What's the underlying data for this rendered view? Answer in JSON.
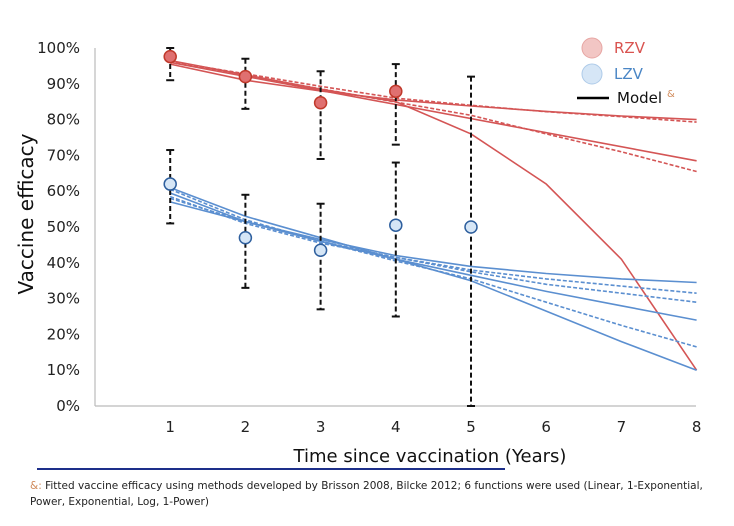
{
  "chart_data": {
    "type": "line",
    "xlabel": "Time since vaccination (Years)",
    "ylabel": "Vaccine efficacy",
    "x_ticks": [
      1,
      2,
      3,
      4,
      5,
      6,
      7,
      8
    ],
    "y_ticks": [
      "0%",
      "10%",
      "20%",
      "30%",
      "40%",
      "50%",
      "60%",
      "70%",
      "80%",
      "90%",
      "100%"
    ],
    "xlim": [
      0,
      8
    ],
    "ylim": [
      0,
      100
    ],
    "legend": [
      {
        "label": "RZV",
        "kind": "marker",
        "color": "#d9534f"
      },
      {
        "label": "LZV",
        "kind": "marker",
        "color": "#4a86c5"
      },
      {
        "label": "Model",
        "kind": "line",
        "color": "#000000",
        "superscript": "&"
      }
    ],
    "observed": [
      {
        "name": "RZV",
        "color": "#c0392b",
        "fill": "#e07070",
        "points": [
          {
            "x": 1,
            "y": 97.6,
            "lo": 91.0,
            "hi": 100.0
          },
          {
            "x": 2,
            "y": 92.0,
            "lo": 83.0,
            "hi": 97.0
          },
          {
            "x": 3,
            "y": 84.7,
            "lo": 69.0,
            "hi": 93.5
          },
          {
            "x": 4,
            "y": 87.9,
            "lo": 73.0,
            "hi": 95.5
          },
          {
            "x": 5,
            "y": null,
            "lo": 0.0,
            "hi": 92.0
          }
        ]
      },
      {
        "name": "LZV",
        "color": "#2e5f9e",
        "fill": "#d6e6f6",
        "points": [
          {
            "x": 1,
            "y": 62.0,
            "lo": 51.0,
            "hi": 71.5
          },
          {
            "x": 2,
            "y": 47.0,
            "lo": 33.0,
            "hi": 59.0
          },
          {
            "x": 3,
            "y": 43.5,
            "lo": 27.0,
            "hi": 56.5
          },
          {
            "x": 4,
            "y": 50.5,
            "lo": 25.0,
            "hi": 68.0
          },
          {
            "x": 5,
            "y": 50.0,
            "lo": null,
            "hi": null
          }
        ]
      }
    ],
    "model_curves": [
      {
        "group": "RZV",
        "style": "solid",
        "color": "#d45555",
        "x": [
          1,
          2,
          3,
          4,
          5,
          6,
          7,
          8
        ],
        "y": [
          96.5,
          92.5,
          88.5,
          85.0,
          76.0,
          62.0,
          41.0,
          10.0
        ]
      },
      {
        "group": "RZV",
        "style": "solid",
        "color": "#d45555",
        "x": [
          1,
          8
        ],
        "y": [
          96.0,
          68.5
        ]
      },
      {
        "group": "RZV",
        "style": "dashed",
        "color": "#d45555",
        "x": [
          1,
          2,
          3,
          4,
          5,
          6,
          7,
          8
        ],
        "y": [
          96.0,
          92.3,
          88.6,
          84.9,
          81.2,
          76.0,
          71.0,
          65.5
        ]
      },
      {
        "group": "RZV",
        "style": "solid",
        "color": "#d45555",
        "x": [
          1,
          2,
          3,
          4,
          5,
          6,
          7,
          8
        ],
        "y": [
          95.5,
          91.0,
          88.0,
          85.5,
          83.8,
          82.3,
          81.0,
          80.0
        ]
      },
      {
        "group": "RZV",
        "style": "dashed",
        "color": "#d45555",
        "x": [
          1,
          2,
          3,
          4,
          5,
          6,
          7,
          8
        ],
        "y": [
          96.2,
          92.8,
          89.3,
          86.0,
          84.0,
          82.2,
          80.8,
          79.3
        ]
      },
      {
        "group": "LZV",
        "style": "solid",
        "color": "#5b8fd0",
        "x": [
          1,
          2,
          3,
          4,
          5,
          6,
          7,
          8
        ],
        "y": [
          61.0,
          53.0,
          47.0,
          41.0,
          35.0,
          26.5,
          18.0,
          10.0
        ]
      },
      {
        "group": "LZV",
        "style": "dashed",
        "color": "#5b8fd0",
        "x": [
          1,
          2,
          3,
          4,
          5,
          6,
          7,
          8
        ],
        "y": [
          60.5,
          52.0,
          46.0,
          40.5,
          35.5,
          29.0,
          22.5,
          16.5
        ]
      },
      {
        "group": "LZV",
        "style": "solid",
        "color": "#5b8fd0",
        "x": [
          1,
          2,
          3,
          4,
          5,
          6,
          7,
          8
        ],
        "y": [
          59.5,
          51.5,
          46.0,
          41.0,
          36.5,
          32.0,
          28.0,
          24.0
        ]
      },
      {
        "group": "LZV",
        "style": "dashed",
        "color": "#5b8fd0",
        "x": [
          1,
          2,
          3,
          4,
          5,
          6,
          7,
          8
        ],
        "y": [
          58.5,
          51.0,
          45.5,
          41.5,
          37.5,
          34.0,
          31.5,
          29.0
        ]
      },
      {
        "group": "LZV",
        "style": "dashed",
        "color": "#5b8fd0",
        "x": [
          1,
          2,
          3,
          4,
          5,
          6,
          7,
          8
        ],
        "y": [
          58.0,
          51.5,
          46.0,
          41.5,
          38.0,
          35.5,
          33.5,
          31.5
        ]
      },
      {
        "group": "LZV",
        "style": "solid",
        "color": "#5b8fd0",
        "x": [
          1,
          2,
          3,
          4,
          5,
          6,
          7,
          8
        ],
        "y": [
          57.0,
          51.5,
          46.5,
          42.0,
          39.0,
          37.0,
          35.5,
          34.5
        ]
      }
    ]
  },
  "footnote": {
    "marker": "&:",
    "text": "Fitted vaccine efficacy using methods developed by Brisson 2008, Bilcke 2012; 6 functions were used (Linear, 1-Exponential, Power, Exponential, Log, 1-Power)"
  }
}
